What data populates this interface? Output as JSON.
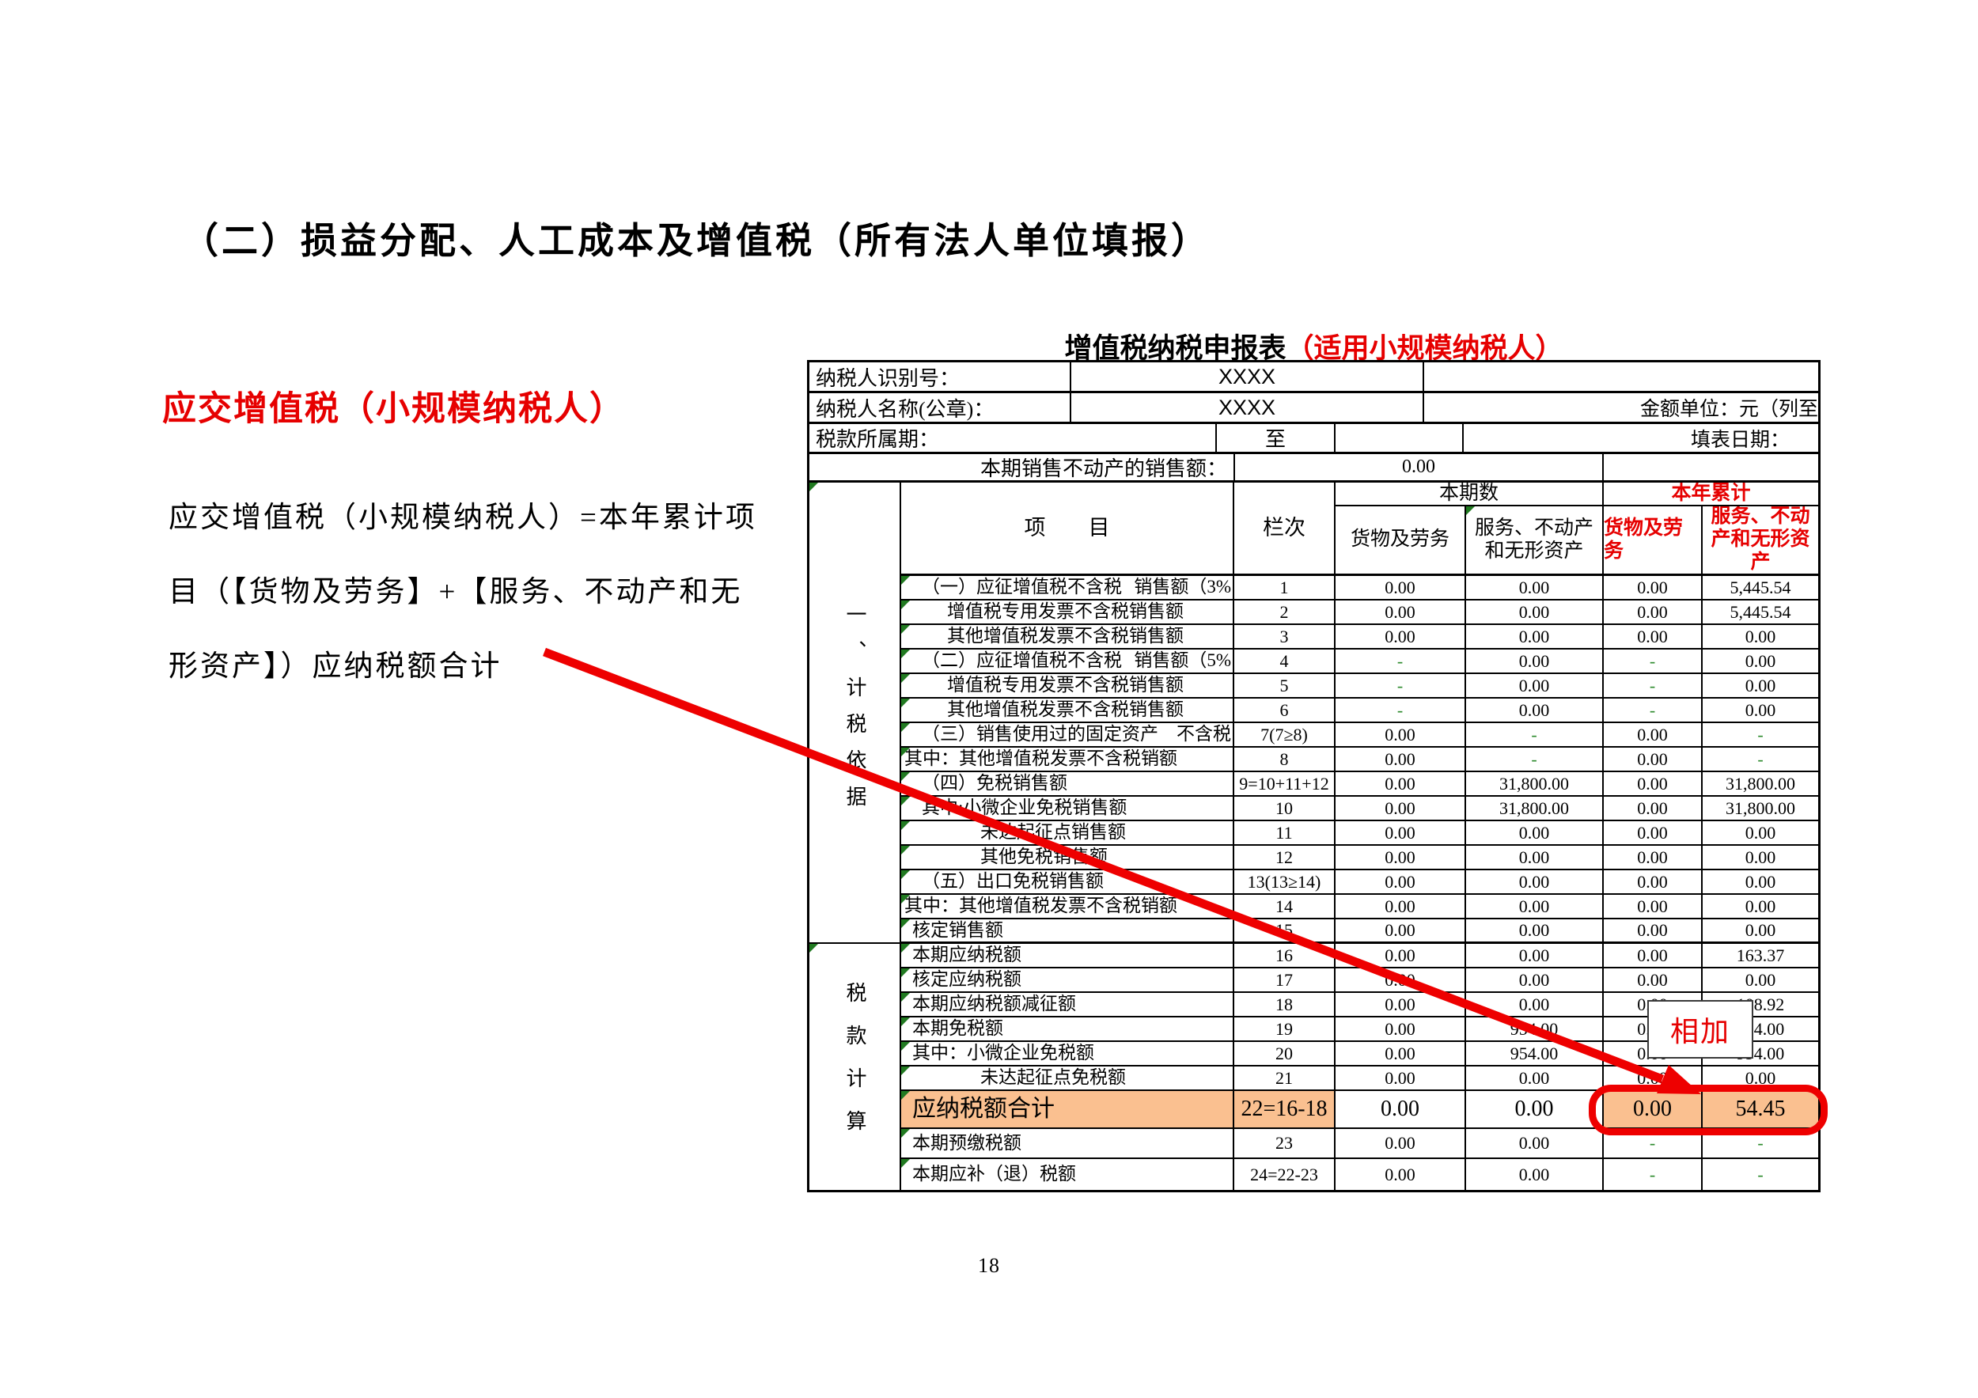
{
  "page": {
    "heading": "（二）损益分配、人工成本及增值税（所有法人单位填报）",
    "page_number": "18"
  },
  "left_panel": {
    "red_heading": "应交增值税（小规模纳税人）",
    "note_line1": "应交增值税（小规模纳税人）=本年累计项",
    "note_line2": "目（【货物及劳务】+【服务、不动产和无",
    "note_line3": "形资产】）应纳税额合计",
    "callout_label": "相加"
  },
  "colors": {
    "accent_red": "#e60000",
    "highlight_orange": "#FAC090",
    "dash_green": "#2e8b2e"
  },
  "form": {
    "title_black": "增值税纳税申报表",
    "title_red": "（适用小规模纳税人）",
    "info": {
      "taxpayer_id_label": "纳税人识别号：",
      "taxpayer_id_value": "XXXX",
      "taxpayer_name_label": "纳税人名称(公章)：",
      "taxpayer_name_value": "XXXX",
      "unit_note": "金额单位：元（列至",
      "period_label": "税款所属期：",
      "to_label": "至",
      "fill_date_label": "填表日期：",
      "estate_label": "本期销售不动产的销售额：",
      "estate_value": "0.00"
    },
    "columns": {
      "item": "项　　目",
      "col_no": "栏次",
      "current": "本期数",
      "ytd": "本年累计",
      "goods": "货物及劳务",
      "services": "服务、不动产和无形资产",
      "goods_ytd": "货物及劳务",
      "services_ytd": "服务、不动产和无形资产"
    },
    "groups": {
      "g1": "一、计税依据",
      "g2": "税款计算"
    },
    "rows": [
      {
        "no": "1",
        "label": "（一）应征增值税不含税",
        "sub": "销售额（3%",
        "v": [
          "0.00",
          "0.00",
          "0.00",
          "5,445.54"
        ],
        "indent": 2
      },
      {
        "no": "2",
        "label": "增值税专用发票不含税销售额",
        "v": [
          "0.00",
          "0.00",
          "0.00",
          "5,445.54"
        ],
        "indent": 3
      },
      {
        "no": "3",
        "label": "其他增值税发票不含税销售额",
        "v": [
          "0.00",
          "0.00",
          "0.00",
          "0.00"
        ],
        "indent": 3
      },
      {
        "no": "4",
        "label": "（二）应征增值税不含税",
        "sub": "销售额（5%",
        "v": [
          "-",
          "0.00",
          "-",
          "0.00"
        ],
        "indent": 2
      },
      {
        "no": "5",
        "label": "增值税专用发票不含税销售额",
        "v": [
          "-",
          "0.00",
          "-",
          "0.00"
        ],
        "indent": 3
      },
      {
        "no": "6",
        "label": "其他增值税发票不含税销售额",
        "v": [
          "-",
          "0.00",
          "-",
          "0.00"
        ],
        "indent": 3
      },
      {
        "no": "7(7≥8)",
        "label": "（三）销售使用过的固定资产",
        "sub": "不含税",
        "v": [
          "0.00",
          "-",
          "0.00",
          "-"
        ],
        "indent": 2
      },
      {
        "no": "8",
        "label": "其中：其他增值税发票不含税销额",
        "v": [
          "0.00",
          "-",
          "0.00",
          "-"
        ],
        "indent": 0
      },
      {
        "no": "9=10+11+12",
        "label": "（四）免税销售额",
        "v": [
          "0.00",
          "31,800.00",
          "0.00",
          "31,800.00"
        ],
        "indent": 2
      },
      {
        "no": "10",
        "label": "其中:小微企业免税销售额",
        "v": [
          "0.00",
          "31,800.00",
          "0.00",
          "31,800.00"
        ],
        "indent": 2
      },
      {
        "no": "11",
        "label": "未达起征点销售额",
        "v": [
          "0.00",
          "0.00",
          "0.00",
          "0.00"
        ],
        "indent": 4
      },
      {
        "no": "12",
        "label": "其他免税销售额",
        "v": [
          "0.00",
          "0.00",
          "0.00",
          "0.00"
        ],
        "indent": 4
      },
      {
        "no": "13(13≥14)",
        "label": "（五）出口免税销售额",
        "v": [
          "0.00",
          "0.00",
          "0.00",
          "0.00"
        ],
        "indent": 2
      },
      {
        "no": "14",
        "label": "其中：其他增值税发票不含税销额",
        "v": [
          "0.00",
          "0.00",
          "0.00",
          "0.00"
        ],
        "indent": 0
      },
      {
        "no": "15",
        "label": "核定销售额",
        "v": [
          "0.00",
          "0.00",
          "0.00",
          "0.00"
        ],
        "indent": 1
      },
      {
        "no": "16",
        "label": "本期应纳税额",
        "v": [
          "0.00",
          "0.00",
          "0.00",
          "163.37"
        ],
        "indent": 1
      },
      {
        "no": "17",
        "label": "核定应纳税额",
        "v": [
          "0.00",
          "0.00",
          "0.00",
          "0.00"
        ],
        "indent": 1
      },
      {
        "no": "18",
        "label": "本期应纳税额减征额",
        "v": [
          "0.00",
          "0.00",
          "0.00",
          "108.92"
        ],
        "indent": 1
      },
      {
        "no": "19",
        "label": "本期免税额",
        "v": [
          "0.00",
          "954.00",
          "0.00",
          "954.00"
        ],
        "indent": 1
      },
      {
        "no": "20",
        "label": "其中：小微企业免税额",
        "v": [
          "0.00",
          "954.00",
          "0.00",
          "954.00"
        ],
        "indent": 1
      },
      {
        "no": "21",
        "label": "未达起征点免税额",
        "v": [
          "0.00",
          "0.00",
          "0.00",
          "0.00"
        ],
        "indent": 4
      },
      {
        "no": "22=16-18",
        "label": "应纳税额合计",
        "v": [
          "0.00",
          "0.00",
          "0.00",
          "54.45"
        ],
        "indent": 1,
        "highlight": true
      },
      {
        "no": "23",
        "label": "本期预缴税额",
        "v": [
          "0.00",
          "0.00",
          "-",
          "-"
        ],
        "indent": 1
      },
      {
        "no": "24=22-23",
        "label": "本期应补（退）税额",
        "v": [
          "0.00",
          "0.00",
          "-",
          "-"
        ],
        "indent": 1
      }
    ]
  }
}
